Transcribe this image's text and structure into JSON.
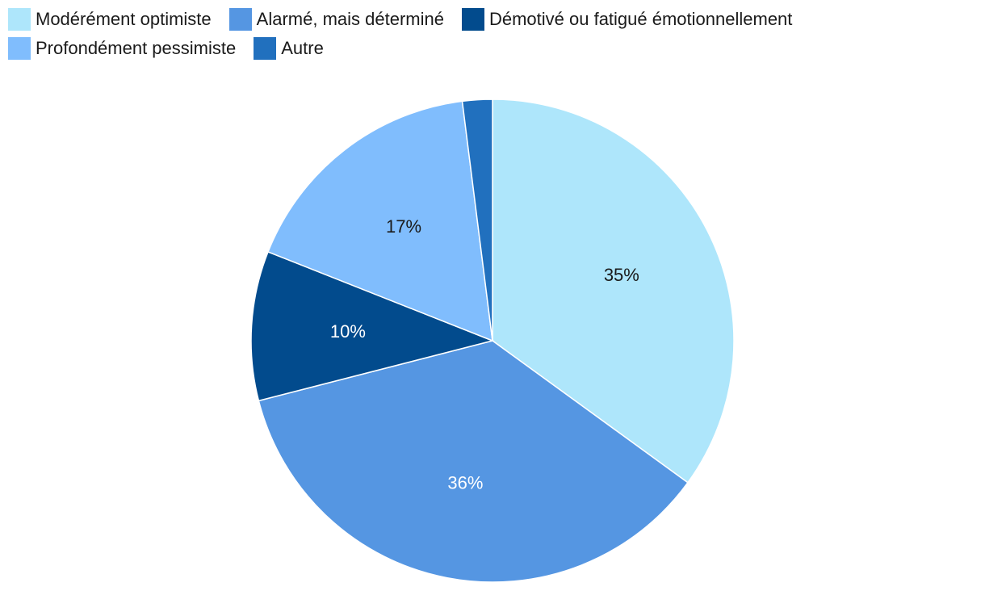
{
  "chart_data": {
    "type": "pie",
    "title": "",
    "legend_position": "top-left",
    "slices": [
      {
        "name": "Modérément optimiste",
        "value": 35,
        "label": "35%",
        "color": "#aee6fb",
        "label_color": "#1a1a1a"
      },
      {
        "name": "Alarmé, mais déterminé",
        "value": 36,
        "label": "36%",
        "color": "#5596e2",
        "label_color": "#ffffff"
      },
      {
        "name": "Démotivé ou fatigué émotionnellement",
        "value": 10,
        "label": "10%",
        "color": "#024b8d",
        "label_color": "#ffffff"
      },
      {
        "name": "Profondément pessimiste",
        "value": 17,
        "label": "17%",
        "color": "#80bdfd",
        "label_color": "#1a1a1a"
      },
      {
        "name": "Autre",
        "value": 2,
        "label": "",
        "color": "#2170be",
        "label_color": "#ffffff"
      }
    ]
  }
}
